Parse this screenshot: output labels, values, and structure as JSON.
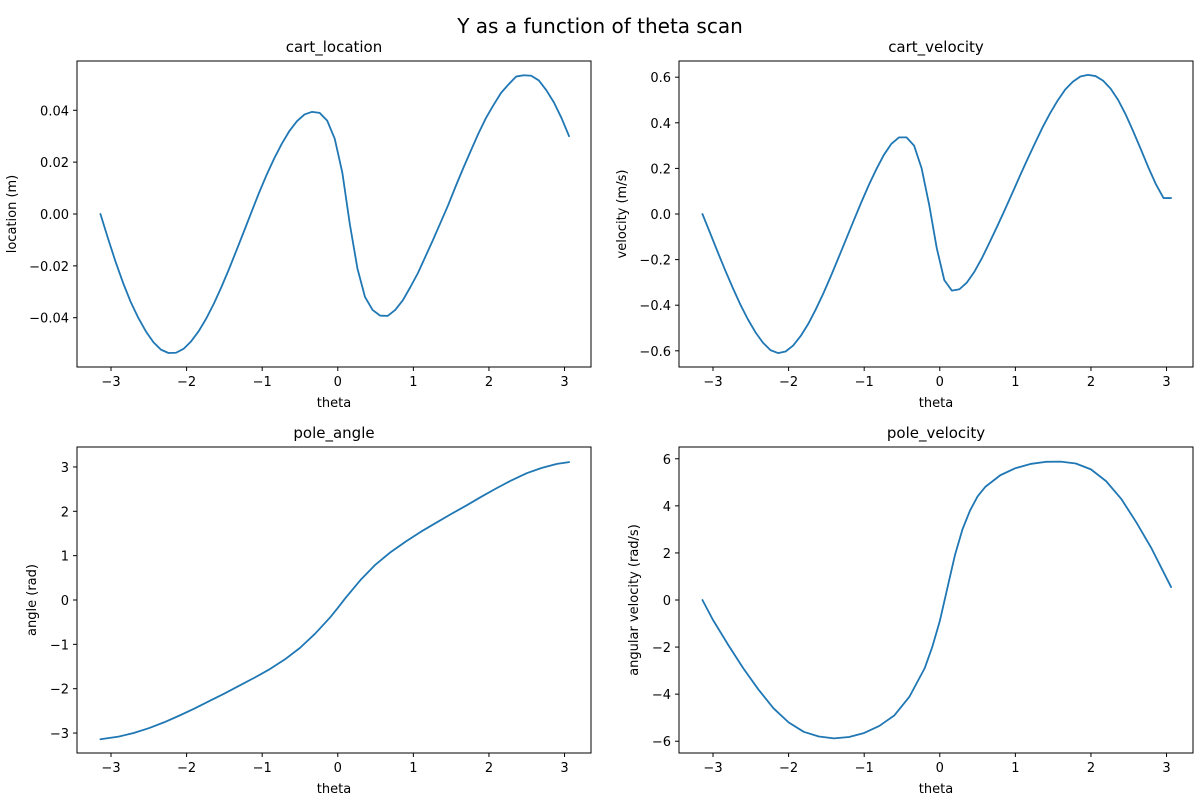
{
  "figure": {
    "suptitle": "Y as a function of theta scan",
    "line_color": "#1f77b4"
  },
  "chart_data": [
    {
      "type": "line",
      "title": "cart_location",
      "xlabel": "theta",
      "ylabel": "location (m)",
      "xlim": [
        -3.45,
        3.35
      ],
      "ylim": [
        -0.059,
        0.059
      ],
      "xticks": [
        -3,
        -2,
        -1,
        0,
        1,
        2,
        3
      ],
      "xtick_labels": [
        "−3",
        "−2",
        "−1",
        "0",
        "1",
        "2",
        "3"
      ],
      "yticks": [
        -0.04,
        -0.02,
        0.0,
        0.02,
        0.04
      ],
      "ytick_labels": [
        "−0.04",
        "−0.02",
        "0.00",
        "0.02",
        "0.04"
      ],
      "grid": false,
      "series": [
        {
          "x": [
            -3.14,
            -3.04,
            -2.94,
            -2.84,
            -2.74,
            -2.64,
            -2.54,
            -2.44,
            -2.34,
            -2.24,
            -2.14,
            -2.04,
            -1.94,
            -1.84,
            -1.74,
            -1.64,
            -1.54,
            -1.44,
            -1.34,
            -1.24,
            -1.14,
            -1.04,
            -0.94,
            -0.84,
            -0.74,
            -0.64,
            -0.54,
            -0.44,
            -0.34,
            -0.24,
            -0.14,
            -0.04,
            0.06,
            0.16,
            0.26,
            0.36,
            0.46,
            0.56,
            0.66,
            0.76,
            0.86,
            0.96,
            1.06,
            1.16,
            1.26,
            1.36,
            1.46,
            1.56,
            1.66,
            1.76,
            1.86,
            1.96,
            2.06,
            2.16,
            2.26,
            2.36,
            2.46,
            2.56,
            2.66,
            2.76,
            2.86,
            2.96,
            3.06
          ],
          "y": [
            0.0,
            -0.0094,
            -0.0184,
            -0.0266,
            -0.0339,
            -0.04,
            -0.0452,
            -0.0494,
            -0.0523,
            -0.0536,
            -0.0535,
            -0.052,
            -0.0491,
            -0.0452,
            -0.0403,
            -0.0346,
            -0.0282,
            -0.0213,
            -0.014,
            -0.0066,
            0.0009,
            0.0083,
            0.0152,
            0.0215,
            0.0271,
            0.032,
            0.0358,
            0.0384,
            0.0394,
            0.039,
            0.036,
            0.029,
            0.016,
            -0.004,
            -0.021,
            -0.032,
            -0.037,
            -0.0392,
            -0.0393,
            -0.037,
            -0.0333,
            -0.0282,
            -0.0228,
            -0.0164,
            -0.01,
            -0.0033,
            0.0034,
            0.0107,
            0.0177,
            0.0244,
            0.031,
            0.037,
            0.042,
            0.0467,
            0.05,
            0.053,
            0.0535,
            0.0533,
            0.0515,
            0.0477,
            0.043,
            0.037,
            0.03
          ]
        }
      ]
    },
    {
      "type": "line",
      "title": "cart_velocity",
      "xlabel": "theta",
      "ylabel": "velocity (m/s)",
      "xlim": [
        -3.45,
        3.35
      ],
      "ylim": [
        -0.671,
        0.671
      ],
      "xticks": [
        -3,
        -2,
        -1,
        0,
        1,
        2,
        3
      ],
      "xtick_labels": [
        "−3",
        "−2",
        "−1",
        "0",
        "1",
        "2",
        "3"
      ],
      "yticks": [
        -0.6,
        -0.4,
        -0.2,
        0.0,
        0.2,
        0.4,
        0.6
      ],
      "ytick_labels": [
        "−0.6",
        "−0.4",
        "−0.2",
        "0.0",
        "0.2",
        "0.4",
        "0.6"
      ],
      "grid": false,
      "series": [
        {
          "x": [
            -3.14,
            -3.04,
            -2.94,
            -2.84,
            -2.74,
            -2.64,
            -2.54,
            -2.44,
            -2.34,
            -2.24,
            -2.14,
            -2.04,
            -1.94,
            -1.84,
            -1.74,
            -1.64,
            -1.54,
            -1.44,
            -1.34,
            -1.24,
            -1.14,
            -1.04,
            -0.94,
            -0.84,
            -0.74,
            -0.64,
            -0.54,
            -0.44,
            -0.34,
            -0.24,
            -0.14,
            -0.04,
            0.06,
            0.16,
            0.26,
            0.36,
            0.46,
            0.56,
            0.66,
            0.76,
            0.86,
            0.96,
            1.06,
            1.16,
            1.26,
            1.36,
            1.46,
            1.56,
            1.66,
            1.76,
            1.86,
            1.96,
            2.06,
            2.16,
            2.26,
            2.36,
            2.46,
            2.56,
            2.66,
            2.76,
            2.86,
            2.96,
            3.06
          ],
          "y": [
            0.0,
            -0.082,
            -0.165,
            -0.246,
            -0.323,
            -0.396,
            -0.461,
            -0.518,
            -0.564,
            -0.597,
            -0.61,
            -0.603,
            -0.577,
            -0.535,
            -0.482,
            -0.418,
            -0.348,
            -0.272,
            -0.192,
            -0.111,
            -0.03,
            0.05,
            0.126,
            0.196,
            0.259,
            0.308,
            0.336,
            0.336,
            0.3,
            0.2,
            0.04,
            -0.15,
            -0.29,
            -0.336,
            -0.33,
            -0.3,
            -0.252,
            -0.192,
            -0.124,
            -0.054,
            0.018,
            0.092,
            0.167,
            0.24,
            0.311,
            0.38,
            0.442,
            0.498,
            0.546,
            0.58,
            0.603,
            0.61,
            0.605,
            0.585,
            0.55,
            0.5,
            0.436,
            0.362,
            0.284,
            0.204,
            0.13,
            0.07,
            0.07
          ]
        }
      ]
    },
    {
      "type": "line",
      "title": "pole_angle",
      "xlabel": "theta",
      "ylabel": "angle (rad)",
      "xlim": [
        -3.45,
        3.35
      ],
      "ylim": [
        -3.45,
        3.45
      ],
      "xticks": [
        -3,
        -2,
        -1,
        0,
        1,
        2,
        3
      ],
      "xtick_labels": [
        "−3",
        "−2",
        "−1",
        "0",
        "1",
        "2",
        "3"
      ],
      "yticks": [
        -3,
        -2,
        -1,
        0,
        1,
        2,
        3
      ],
      "ytick_labels": [
        "−3",
        "−2",
        "−1",
        "0",
        "1",
        "2",
        "3"
      ],
      "grid": false,
      "series": [
        {
          "x": [
            -3.14,
            -2.9,
            -2.7,
            -2.5,
            -2.3,
            -2.1,
            -1.9,
            -1.7,
            -1.5,
            -1.3,
            -1.1,
            -0.9,
            -0.7,
            -0.5,
            -0.3,
            -0.1,
            0.0,
            0.1,
            0.3,
            0.5,
            0.7,
            0.9,
            1.1,
            1.3,
            1.5,
            1.7,
            1.9,
            2.1,
            2.3,
            2.5,
            2.7,
            2.9,
            3.06
          ],
          "y": [
            -3.14,
            -3.08,
            -3.0,
            -2.89,
            -2.76,
            -2.61,
            -2.45,
            -2.28,
            -2.11,
            -1.93,
            -1.75,
            -1.56,
            -1.34,
            -1.08,
            -0.76,
            -0.39,
            -0.18,
            0.04,
            0.45,
            0.8,
            1.08,
            1.32,
            1.54,
            1.74,
            1.94,
            2.13,
            2.33,
            2.52,
            2.7,
            2.86,
            2.98,
            3.07,
            3.11
          ]
        }
      ]
    },
    {
      "type": "line",
      "title": "pole_velocity",
      "xlabel": "theta",
      "ylabel": "angular velocity (rad/s)",
      "xlim": [
        -3.45,
        3.35
      ],
      "ylim": [
        -6.5,
        6.5
      ],
      "xticks": [
        -3,
        -2,
        -1,
        0,
        1,
        2,
        3
      ],
      "xtick_labels": [
        "−3",
        "−2",
        "−1",
        "0",
        "1",
        "2",
        "3"
      ],
      "yticks": [
        -6,
        -4,
        -2,
        0,
        2,
        4,
        6
      ],
      "ytick_labels": [
        "−6",
        "−4",
        "−2",
        "0",
        "2",
        "4",
        "6"
      ],
      "grid": false,
      "series": [
        {
          "x": [
            -3.14,
            -3.0,
            -2.8,
            -2.6,
            -2.4,
            -2.2,
            -2.0,
            -1.8,
            -1.6,
            -1.4,
            -1.2,
            -1.0,
            -0.8,
            -0.6,
            -0.4,
            -0.2,
            -0.1,
            0.0,
            0.1,
            0.2,
            0.3,
            0.4,
            0.5,
            0.6,
            0.8,
            1.0,
            1.2,
            1.4,
            1.6,
            1.8,
            2.0,
            2.2,
            2.4,
            2.6,
            2.8,
            3.06
          ],
          "y": [
            0.0,
            -0.85,
            -1.9,
            -2.9,
            -3.8,
            -4.6,
            -5.2,
            -5.6,
            -5.8,
            -5.88,
            -5.82,
            -5.65,
            -5.35,
            -4.9,
            -4.1,
            -2.9,
            -2.0,
            -0.9,
            0.5,
            1.9,
            3.0,
            3.8,
            4.4,
            4.8,
            5.3,
            5.6,
            5.78,
            5.87,
            5.88,
            5.8,
            5.55,
            5.05,
            4.3,
            3.3,
            2.2,
            0.55
          ]
        }
      ]
    }
  ]
}
